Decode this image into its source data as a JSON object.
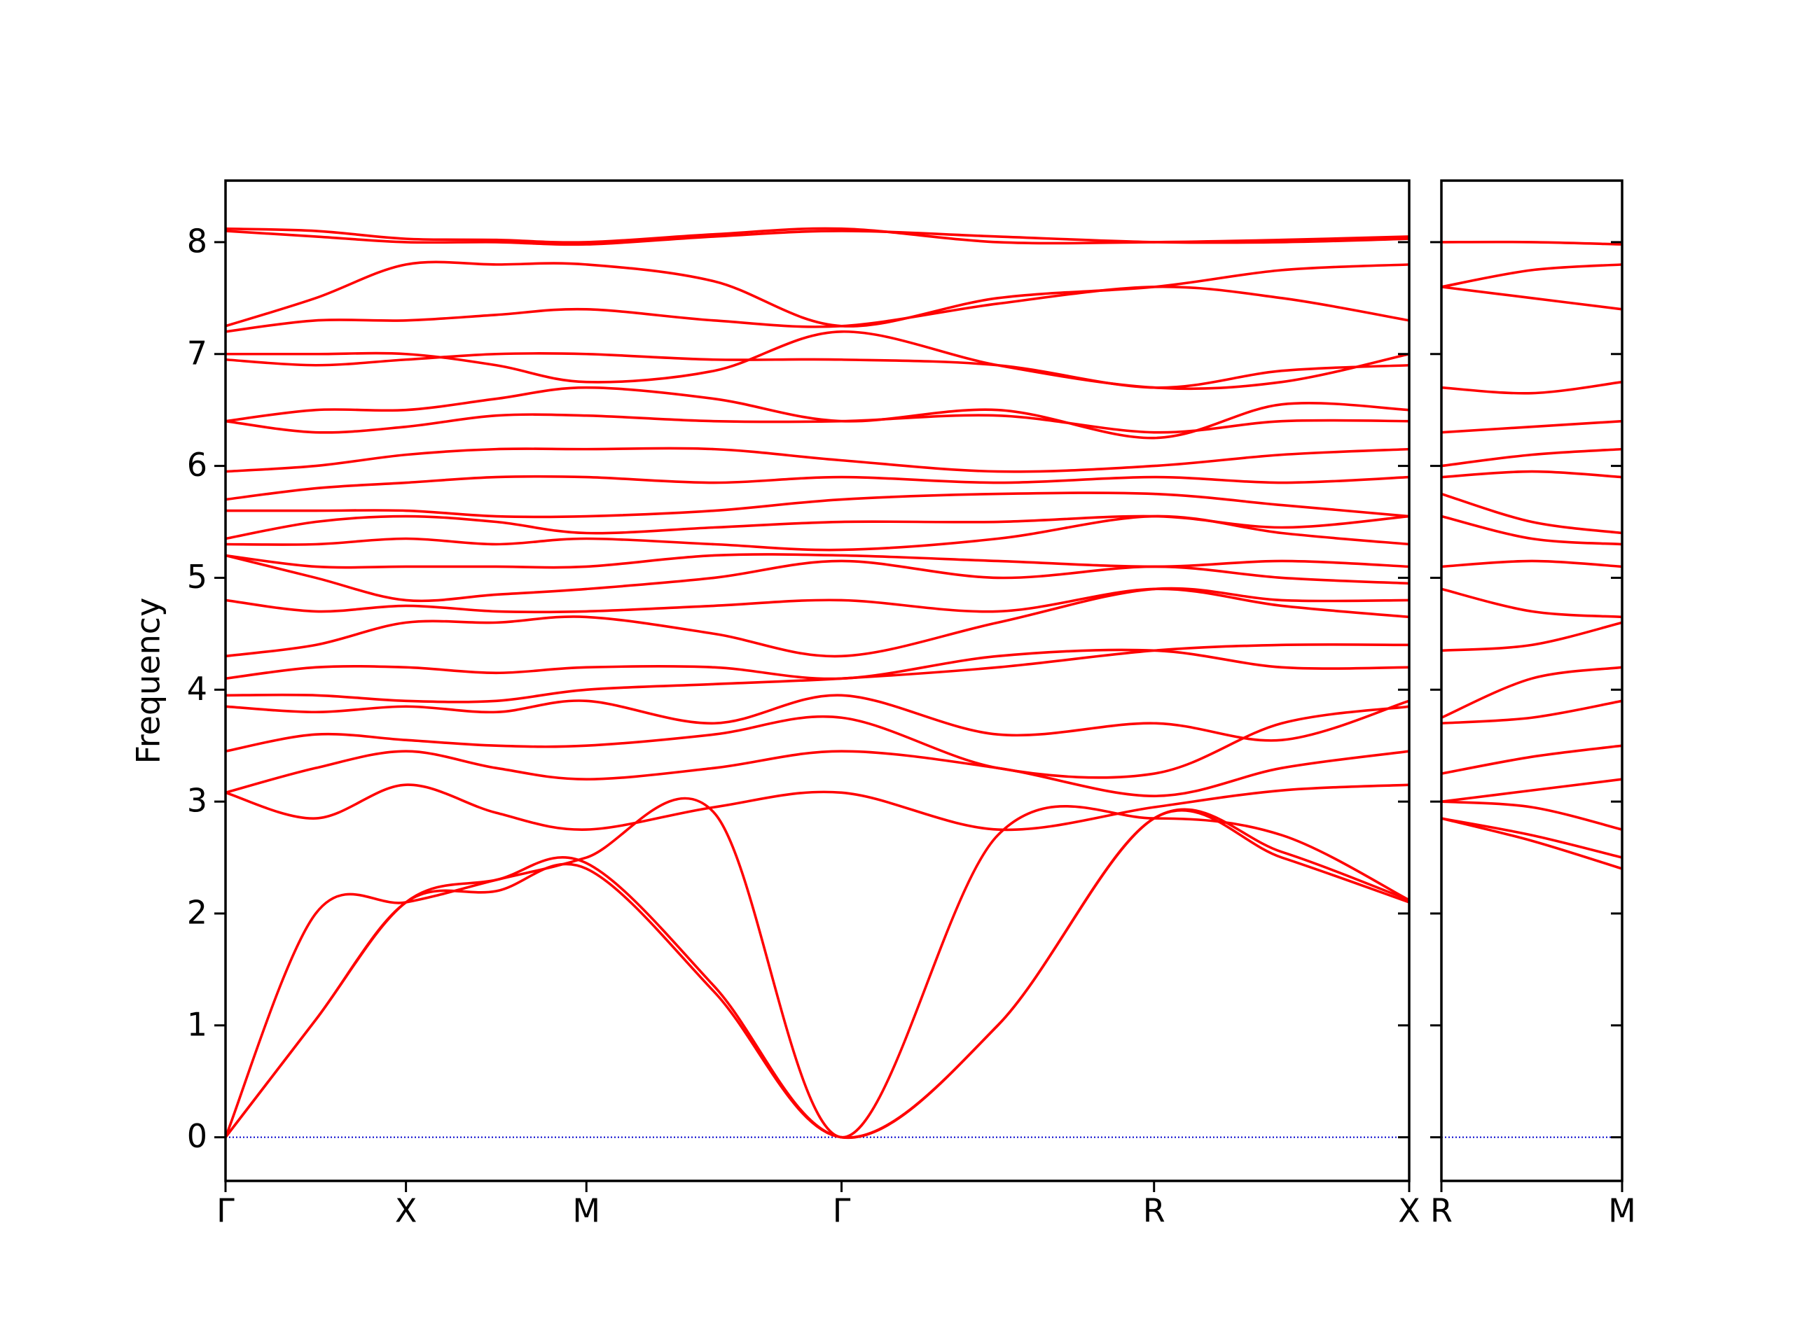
{
  "chart_data": [
    {
      "type": "line",
      "ylabel": "Frequency",
      "xlim": [
        0,
        3.28
      ],
      "ylim": [
        -0.39,
        8.55
      ],
      "xticks": [
        {
          "value": 0,
          "label": "Γ"
        },
        {
          "value": 0.5,
          "label": "X"
        },
        {
          "value": 1.0,
          "label": "M"
        },
        {
          "value": 1.707,
          "label": "Γ"
        },
        {
          "value": 2.573,
          "label": "R"
        },
        {
          "value": 3.28,
          "label": "X"
        }
      ],
      "yticks": [
        0,
        1,
        2,
        3,
        4,
        5,
        6,
        7,
        8
      ],
      "color": "#ff0000",
      "reference_line": {
        "y": 0,
        "color": "#0000cc"
      },
      "x": [
        0,
        0.25,
        0.5,
        0.75,
        1.0,
        1.354,
        1.707,
        2.14,
        2.573,
        2.927,
        3.28
      ],
      "series": [
        {
          "values": [
            0,
            1.05,
            2.1,
            2.2,
            2.4,
            1.3,
            0,
            1.0,
            2.85,
            2.5,
            2.1
          ]
        },
        {
          "values": [
            0,
            1.05,
            2.1,
            2.3,
            2.45,
            1.35,
            0,
            1.0,
            2.85,
            2.55,
            2.12
          ]
        },
        {
          "values": [
            0,
            2.0,
            2.1,
            2.3,
            2.5,
            2.9,
            0,
            2.7,
            2.85,
            2.7,
            2.12
          ]
        },
        {
          "values": [
            3.08,
            2.85,
            3.15,
            2.9,
            2.75,
            2.95,
            3.08,
            2.75,
            2.95,
            3.1,
            3.15
          ]
        },
        {
          "values": [
            3.08,
            3.3,
            3.45,
            3.3,
            3.2,
            3.3,
            3.45,
            3.3,
            3.05,
            3.3,
            3.45
          ]
        },
        {
          "values": [
            3.45,
            3.6,
            3.55,
            3.5,
            3.5,
            3.6,
            3.75,
            3.3,
            3.25,
            3.7,
            3.85
          ]
        },
        {
          "values": [
            3.85,
            3.8,
            3.85,
            3.8,
            3.9,
            3.7,
            3.95,
            3.6,
            3.7,
            3.55,
            3.9
          ]
        },
        {
          "values": [
            3.95,
            3.95,
            3.9,
            3.9,
            4.0,
            4.05,
            4.1,
            4.2,
            4.35,
            4.4,
            4.4
          ]
        },
        {
          "values": [
            4.1,
            4.2,
            4.2,
            4.15,
            4.2,
            4.2,
            4.1,
            4.3,
            4.35,
            4.2,
            4.2
          ]
        },
        {
          "values": [
            4.3,
            4.4,
            4.6,
            4.6,
            4.65,
            4.5,
            4.3,
            4.6,
            4.9,
            4.8,
            4.8
          ]
        },
        {
          "values": [
            4.8,
            4.7,
            4.75,
            4.7,
            4.7,
            4.75,
            4.8,
            4.7,
            4.9,
            4.75,
            4.65
          ]
        },
        {
          "values": [
            5.2,
            5.0,
            4.8,
            4.85,
            4.9,
            5.0,
            5.15,
            5.0,
            5.1,
            5.0,
            4.95
          ]
        },
        {
          "values": [
            5.2,
            5.1,
            5.1,
            5.1,
            5.1,
            5.2,
            5.2,
            5.15,
            5.1,
            5.15,
            5.1
          ]
        },
        {
          "values": [
            5.3,
            5.3,
            5.35,
            5.3,
            5.35,
            5.3,
            5.25,
            5.35,
            5.55,
            5.4,
            5.3
          ]
        },
        {
          "values": [
            5.35,
            5.5,
            5.55,
            5.5,
            5.4,
            5.45,
            5.5,
            5.5,
            5.55,
            5.45,
            5.55
          ]
        },
        {
          "values": [
            5.6,
            5.6,
            5.6,
            5.55,
            5.55,
            5.6,
            5.7,
            5.75,
            5.75,
            5.65,
            5.55
          ]
        },
        {
          "values": [
            5.7,
            5.8,
            5.85,
            5.9,
            5.9,
            5.85,
            5.9,
            5.85,
            5.9,
            5.85,
            5.9
          ]
        },
        {
          "values": [
            5.95,
            6.0,
            6.1,
            6.15,
            6.15,
            6.15,
            6.05,
            5.95,
            6.0,
            6.1,
            6.15
          ]
        },
        {
          "values": [
            6.4,
            6.3,
            6.35,
            6.45,
            6.45,
            6.4,
            6.4,
            6.45,
            6.3,
            6.4,
            6.4
          ]
        },
        {
          "values": [
            6.4,
            6.5,
            6.5,
            6.6,
            6.7,
            6.6,
            6.4,
            6.5,
            6.25,
            6.55,
            6.5
          ]
        },
        {
          "values": [
            6.95,
            6.9,
            6.95,
            7.0,
            7.0,
            6.95,
            6.95,
            6.9,
            6.7,
            6.85,
            6.9
          ]
        },
        {
          "values": [
            7.0,
            7.0,
            7.0,
            6.9,
            6.75,
            6.85,
            7.2,
            6.9,
            6.7,
            6.75,
            7.0
          ]
        },
        {
          "values": [
            7.2,
            7.3,
            7.3,
            7.35,
            7.4,
            7.3,
            7.25,
            7.45,
            7.6,
            7.5,
            7.3
          ]
        },
        {
          "values": [
            7.25,
            7.5,
            7.8,
            7.8,
            7.8,
            7.65,
            7.25,
            7.5,
            7.6,
            7.75,
            7.8
          ]
        },
        {
          "values": [
            8.1,
            8.05,
            8.0,
            8.0,
            7.98,
            8.05,
            8.1,
            8.05,
            8.0,
            8.0,
            8.03
          ]
        },
        {
          "values": [
            8.12,
            8.1,
            8.03,
            8.02,
            8.0,
            8.07,
            8.12,
            8.0,
            8.0,
            8.02,
            8.05
          ]
        }
      ]
    },
    {
      "type": "line",
      "xlim": [
        0,
        0.5
      ],
      "ylim": [
        -0.39,
        8.55
      ],
      "xticks": [
        {
          "value": 0,
          "label": "R"
        },
        {
          "value": 0.5,
          "label": "M"
        }
      ],
      "yticks": [
        0,
        1,
        2,
        3,
        4,
        5,
        6,
        7,
        8
      ],
      "color": "#ff0000",
      "reference_line": {
        "y": 0,
        "color": "#0000cc"
      },
      "x": [
        0,
        0.25,
        0.5
      ],
      "series": [
        {
          "values": [
            2.85,
            2.65,
            2.4
          ]
        },
        {
          "values": [
            2.85,
            2.7,
            2.5
          ]
        },
        {
          "values": [
            3.0,
            2.95,
            2.75
          ]
        },
        {
          "values": [
            3.0,
            3.1,
            3.2
          ]
        },
        {
          "values": [
            3.25,
            3.4,
            3.5
          ]
        },
        {
          "values": [
            3.7,
            3.75,
            3.9
          ]
        },
        {
          "values": [
            3.75,
            4.1,
            4.2
          ]
        },
        {
          "values": [
            4.35,
            4.4,
            4.6
          ]
        },
        {
          "values": [
            4.9,
            4.7,
            4.65
          ]
        },
        {
          "values": [
            5.1,
            5.15,
            5.1
          ]
        },
        {
          "values": [
            5.55,
            5.35,
            5.3
          ]
        },
        {
          "values": [
            5.75,
            5.5,
            5.4
          ]
        },
        {
          "values": [
            5.9,
            5.95,
            5.9
          ]
        },
        {
          "values": [
            6.0,
            6.1,
            6.15
          ]
        },
        {
          "values": [
            6.3,
            6.35,
            6.4
          ]
        },
        {
          "values": [
            6.7,
            6.65,
            6.75
          ]
        },
        {
          "values": [
            7.6,
            7.75,
            7.8
          ]
        },
        {
          "values": [
            7.6,
            7.5,
            7.4
          ]
        },
        {
          "values": [
            8.0,
            8.0,
            7.98
          ]
        }
      ]
    }
  ]
}
